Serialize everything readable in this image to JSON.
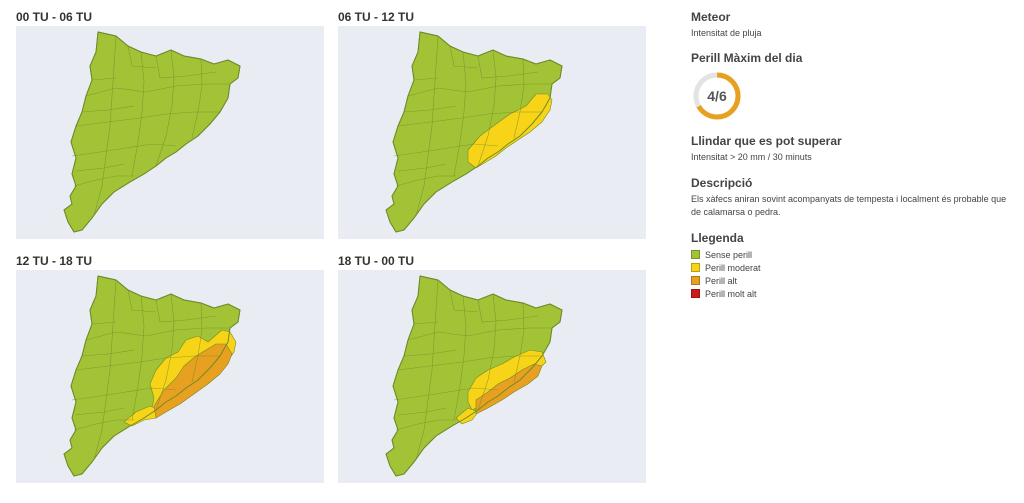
{
  "panels": [
    {
      "title": "00 TU - 06 TU",
      "levels": {
        "yellow": false,
        "orange": false
      }
    },
    {
      "title": "06 TU - 12 TU",
      "levels": {
        "yellow": true,
        "orange": false
      }
    },
    {
      "title": "12 TU - 18 TU",
      "levels": {
        "yellow": true,
        "orange": true
      }
    },
    {
      "title": "18 TU - 00 TU",
      "levels": {
        "yellow": true,
        "orange": true
      }
    }
  ],
  "meteor": {
    "heading": "Meteor",
    "value": "Intensitat de pluja"
  },
  "danger": {
    "heading": "Perill Màxim del dia",
    "value": "4/6",
    "fraction": 0.667,
    "color": "#e8a020"
  },
  "threshold": {
    "heading": "Llindar que es pot superar",
    "value": "Intensitat > 20 mm / 30 minuts"
  },
  "description": {
    "heading": "Descripció",
    "text": "Els xàfecs aniran sovint acompanyats de tempesta i localment és probable que de calamarsa o pedra."
  },
  "legend": {
    "heading": "Llegenda",
    "items": [
      {
        "label": "Sense perill",
        "color": "#a3c337"
      },
      {
        "label": "Perill moderat",
        "color": "#f7d417"
      },
      {
        "label": "Perill alt",
        "color": "#e8a020"
      },
      {
        "label": "Perill molt alt",
        "color": "#cc1b1b"
      }
    ]
  },
  "colors": {
    "green": "#a3c337",
    "yellow": "#f7d417",
    "orange": "#e8a020",
    "border": "#6f8a2a",
    "background": "#e9edf3"
  }
}
